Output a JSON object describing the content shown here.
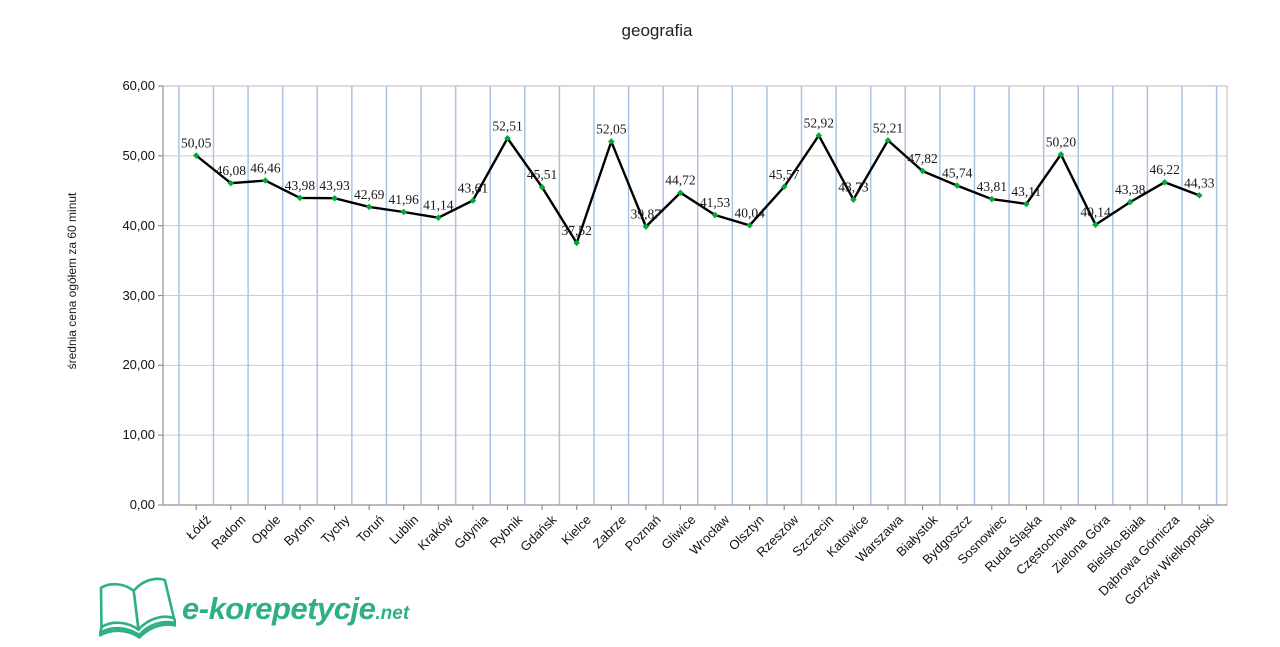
{
  "title": "geografia",
  "chart_data": {
    "type": "line",
    "title": "geografia",
    "xlabel": "",
    "ylabel": "średnia cena ogółem za 60 minut",
    "categories": [
      "Łódź",
      "Radom",
      "Opole",
      "Bytom",
      "Tychy",
      "Toruń",
      "Lublin",
      "Kraków",
      "Gdynia",
      "Rybnik",
      "Gdańsk",
      "Kielce",
      "Zabrze",
      "Poznań",
      "Gliwice",
      "Wrocław",
      "Olsztyn",
      "Rzeszów",
      "Szczecin",
      "Katowice",
      "Warszawa",
      "Białystok",
      "Bydgoszcz",
      "Sosnowiec",
      "Ruda Śląska",
      "Częstochowa",
      "Zielona Góra",
      "Bielsko-Biała",
      "Dąbrowa Górnicza",
      "Gorzów Wielkopolski"
    ],
    "values": [
      50.05,
      46.08,
      46.46,
      43.98,
      43.93,
      42.69,
      41.96,
      41.14,
      43.61,
      52.51,
      45.51,
      37.52,
      52.05,
      39.87,
      44.72,
      41.53,
      40.04,
      45.57,
      52.92,
      43.73,
      52.21,
      47.82,
      45.74,
      43.81,
      43.11,
      50.2,
      40.14,
      43.38,
      46.22,
      44.33
    ],
    "ylim": [
      0,
      60
    ],
    "ytick_step": 10,
    "decimal_separator": ",",
    "grid": {
      "horizontal": true,
      "vertical": true
    },
    "legend_position": "none",
    "data_labels_shown": true,
    "line_color": "#000000",
    "marker_color": "#00a933",
    "vertical_grid_color": "#a9c4e3",
    "horizontal_grid_color": "#cdcdcd"
  },
  "logo": {
    "brand": "e-korepetycje",
    "suffix": ".net",
    "color": "#2eb085",
    "icon": "open-book-icon"
  }
}
